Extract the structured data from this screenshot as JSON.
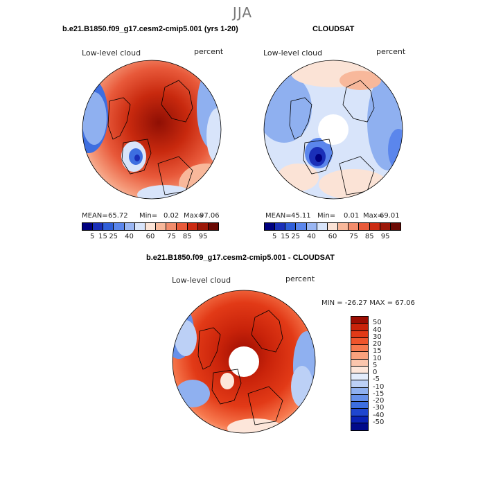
{
  "title": "JJA",
  "panel1": {
    "header": "b.e21.B1850.f09_g17.cesm2-cmip5.001 (yrs 1-20)",
    "left_label": "Low-level cloud",
    "right_label": "percent",
    "mean_label": "MEAN=",
    "mean": "65.72",
    "min_label": "Min=",
    "min": "0.02",
    "max_label": "Max=",
    "max": "97.06"
  },
  "panel2": {
    "header": "CLOUDSAT",
    "left_label": "Low-level cloud",
    "right_label": "percent",
    "mean_label": "MEAN=",
    "mean": "45.11",
    "min_label": "Min=",
    "min": "0.01",
    "max_label": "Max=",
    "max": "69.01"
  },
  "panel3": {
    "header": "b.e21.B1850.f09_g17.cesm2-cmip5.001 - CLOUDSAT",
    "left_label": "Low-level cloud",
    "right_label": "percent",
    "minmax": "MIN = -26.27 MAX =  67.06"
  },
  "colorbar_abs": {
    "ticks": [
      "5",
      "15",
      "25",
      "40",
      "60",
      "75",
      "85",
      "95"
    ],
    "colors": [
      "#00007f",
      "#1a2fb8",
      "#2f5ed8",
      "#5b86ec",
      "#9ab6f3",
      "#d8e4fa",
      "#fbe3d6",
      "#f8b89b",
      "#f28c6c",
      "#e85a3a",
      "#cc2b12",
      "#9c1808",
      "#6b0a04"
    ]
  },
  "colorbar_diff": {
    "ticks": [
      "50",
      "40",
      "30",
      "20",
      "15",
      "10",
      "5",
      "0",
      "-5",
      "-10",
      "-15",
      "-20",
      "-30",
      "-40",
      "-50"
    ],
    "colors": [
      "#9c0d02",
      "#c9230a",
      "#e23a17",
      "#f0552c",
      "#f77a4f",
      "#f9a27d",
      "#fbc6ad",
      "#fde6da",
      "#e3ecfb",
      "#bcd0f6",
      "#8fb0f0",
      "#6690ea",
      "#3d6ee0",
      "#1f46cf",
      "#0a22b5",
      "#010a8a"
    ]
  },
  "colors": {
    "ocean_light": "#d8e4fa",
    "pole_blank": "#ffffff"
  }
}
